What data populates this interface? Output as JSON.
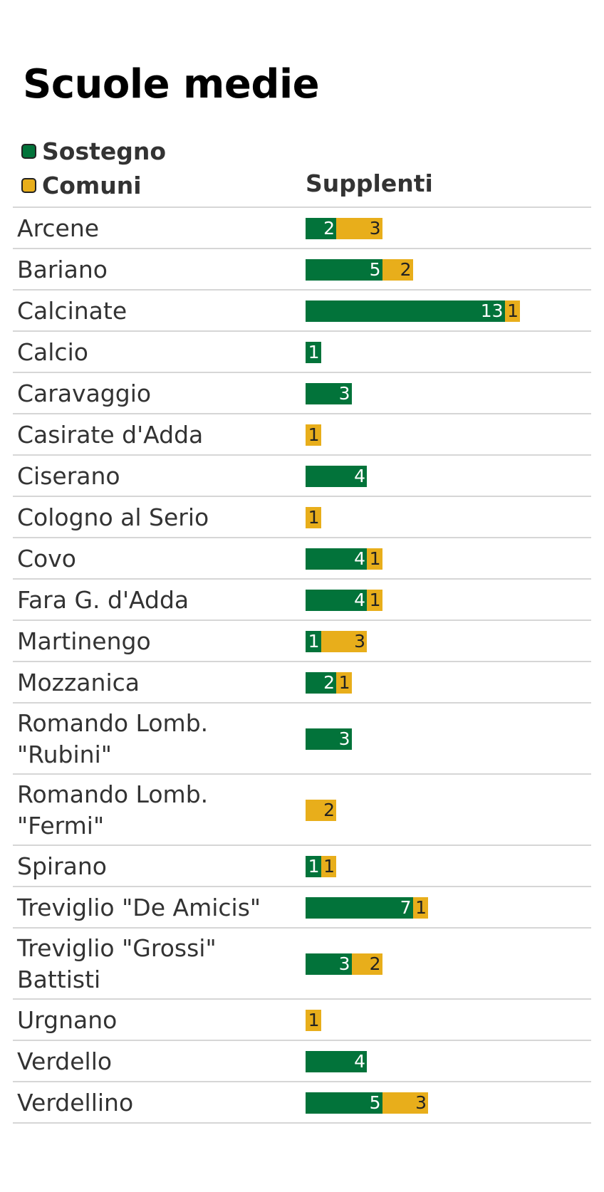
{
  "colors": {
    "sostegno": "#02733a",
    "comuni": "#e8ae1b"
  },
  "chart_data": {
    "type": "bar",
    "orientation": "horizontal",
    "stacked": true,
    "title": "Scuole medie",
    "column_header": "Supplenti",
    "legend": [
      "Sostegno",
      "Comuni"
    ],
    "legend_placement": "top-left",
    "grid": false,
    "categories": [
      "Arcene",
      "Bariano",
      "Calcinate",
      "Calcio",
      "Caravaggio",
      "Casirate d'Adda",
      "Ciserano",
      "Cologno al Serio",
      "Covo",
      "Fara G. d'Adda",
      "Martinengo",
      "Mozzanica",
      "Romando Lomb. \"Rubini\"",
      "Romando Lomb. \"Fermi\"",
      "Spirano",
      "Treviglio \"De Amicis\"",
      "Treviglio \"Grossi\" Battisti",
      "Urgnano",
      "Verdello",
      "Verdellino"
    ],
    "series": [
      {
        "name": "Sostegno",
        "values": [
          2,
          5,
          13,
          1,
          3,
          0,
          4,
          0,
          4,
          4,
          1,
          2,
          3,
          0,
          1,
          7,
          3,
          0,
          4,
          5
        ]
      },
      {
        "name": "Comuni",
        "values": [
          3,
          2,
          1,
          0,
          0,
          1,
          0,
          1,
          1,
          1,
          3,
          1,
          0,
          2,
          1,
          1,
          2,
          1,
          0,
          3
        ]
      }
    ]
  }
}
